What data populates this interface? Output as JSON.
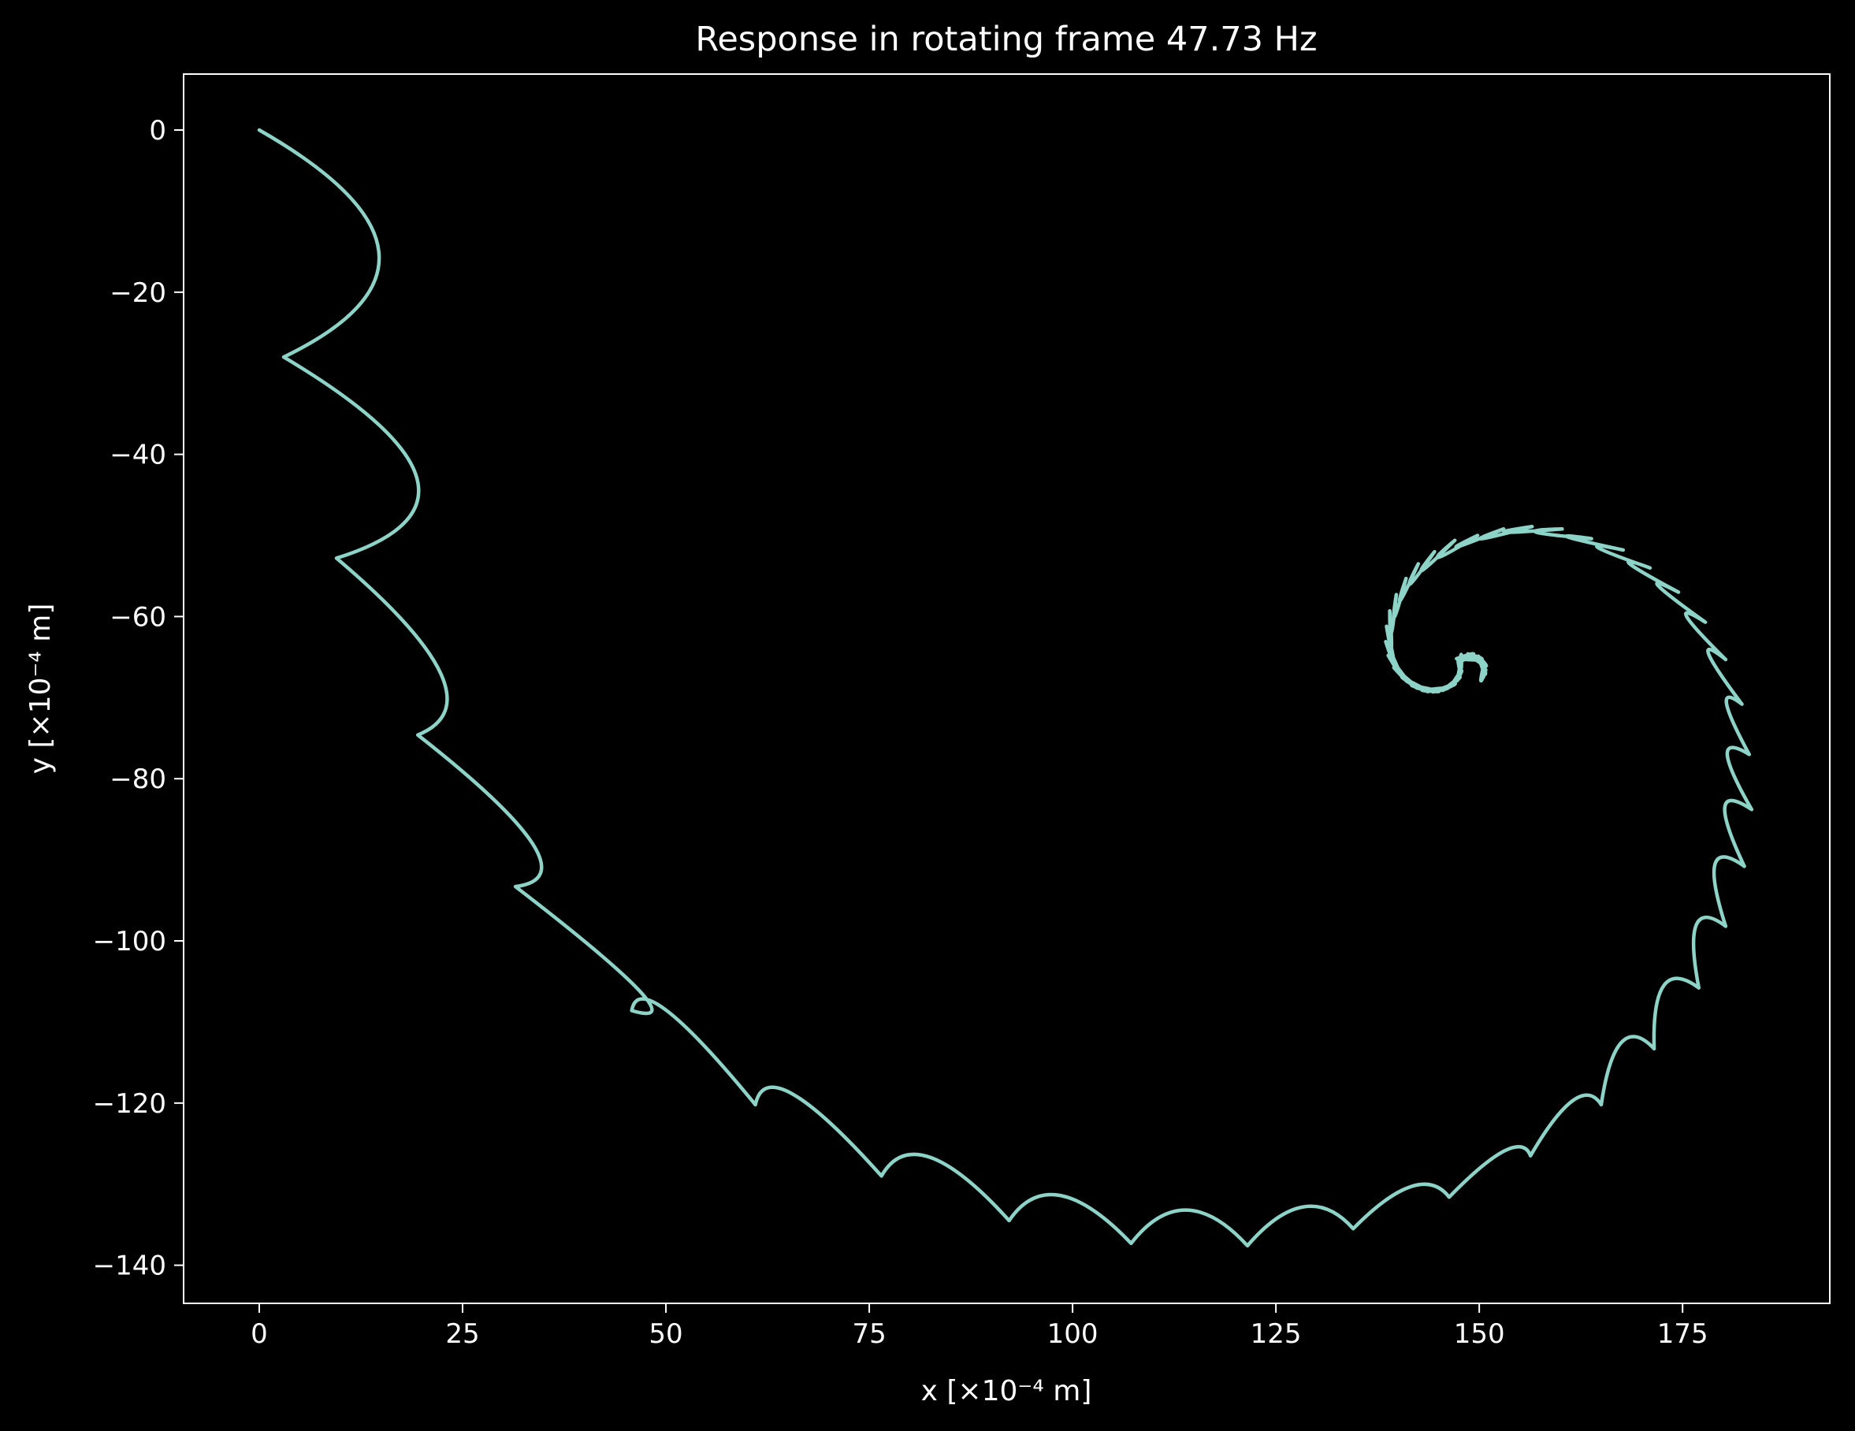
{
  "chart_data": {
    "type": "line",
    "title": "Response in rotating frame 47.73 Hz",
    "xlabel": "x [×10⁻⁴ m]",
    "ylabel": "y [×10⁻⁴ m]",
    "xlim": [
      -9.3,
      193.1
    ],
    "ylim": [
      -144.7,
      6.9
    ],
    "x_ticks": [
      {
        "value": 0,
        "label": "0"
      },
      {
        "value": 25,
        "label": "25"
      },
      {
        "value": 50,
        "label": "50"
      },
      {
        "value": 75,
        "label": "75"
      },
      {
        "value": 100,
        "label": "100"
      },
      {
        "value": 125,
        "label": "125"
      },
      {
        "value": 150,
        "label": "150"
      },
      {
        "value": 175,
        "label": "175"
      }
    ],
    "y_ticks": [
      {
        "value": 0,
        "label": "0"
      },
      {
        "value": -20,
        "label": "−20"
      },
      {
        "value": -40,
        "label": "−40"
      },
      {
        "value": -60,
        "label": "−60"
      },
      {
        "value": -80,
        "label": "−80"
      },
      {
        "value": -100,
        "label": "−100"
      },
      {
        "value": -120,
        "label": "−120"
      },
      {
        "value": -140,
        "label": "−140"
      }
    ],
    "grid": false,
    "line_color": "#8dd3c7",
    "background": "#000000",
    "series": [
      {
        "curve": "trochoid-spiral",
        "start": [
          0,
          0
        ],
        "center": [
          149.5,
          -66.5
        ],
        "cusps": [
          [
            3,
            -28
          ],
          [
            9.5,
            -52.8
          ],
          [
            19.5,
            -74.6
          ],
          [
            31.5,
            -93.3
          ],
          [
            45.8,
            -108.6
          ],
          [
            61,
            -120.2
          ],
          [
            76.5,
            -129
          ],
          [
            92.2,
            -134.5
          ],
          [
            107.2,
            -137.3
          ],
          [
            121.5,
            -137.6
          ],
          [
            134.5,
            -135.5
          ],
          [
            146.3,
            -131.6
          ],
          [
            156.3,
            -126.5
          ],
          [
            165,
            -120.2
          ],
          [
            171.5,
            -113.3
          ],
          [
            177,
            -105.8
          ],
          [
            180.3,
            -98.2
          ],
          [
            182.6,
            -90.8
          ],
          [
            183.5,
            -83.8
          ],
          [
            183.2,
            -77
          ],
          [
            182.3,
            -70.8
          ],
          [
            180.3,
            -65.3
          ],
          [
            177.8,
            -60.7
          ],
          [
            174.5,
            -57
          ],
          [
            171,
            -54
          ],
          [
            167.7,
            -51.8
          ],
          [
            163.8,
            -50.4
          ],
          [
            160.2,
            -49.2
          ],
          [
            156.5,
            -48.9
          ],
          [
            153,
            -49.2
          ],
          [
            149.8,
            -50
          ],
          [
            147,
            -50.6
          ],
          [
            144.5,
            -52
          ],
          [
            142.5,
            -53.5
          ],
          [
            141,
            -55.3
          ],
          [
            139.8,
            -57.3
          ],
          [
            139,
            -59.3
          ],
          [
            138.6,
            -61.2
          ],
          [
            138.5,
            -63.1
          ],
          [
            138.8,
            -64.8
          ],
          [
            139.5,
            -66.3
          ],
          [
            140.5,
            -67.5
          ],
          [
            141.7,
            -68.5
          ],
          [
            143,
            -69.1
          ],
          [
            144.3,
            -69.3
          ],
          [
            145.5,
            -69.1
          ],
          [
            146.5,
            -68.6
          ],
          [
            147.3,
            -67.9
          ],
          [
            147.7,
            -67.1
          ],
          [
            147.8,
            -66.3
          ],
          [
            147.6,
            -65.6
          ],
          [
            147.2,
            -65.2
          ],
          [
            148.6,
            -64.6
          ],
          [
            149.9,
            -64.9
          ],
          [
            150.6,
            -65.7
          ],
          [
            150.8,
            -66.6
          ],
          [
            150.5,
            -67.5
          ]
        ],
        "bulges": [
          [
            14.7,
            -15
          ],
          [
            19.4,
            -43
          ],
          [
            22.3,
            -67
          ],
          [
            33.6,
            -88
          ],
          [
            46.7,
            -106.1
          ],
          [
            50.1,
            -108.6
          ],
          [
            65.6,
            -118.9
          ],
          [
            82.5,
            -126.7
          ],
          [
            98.5,
            -131.4
          ],
          [
            114,
            -133.2
          ],
          [
            128.4,
            -132.8
          ],
          [
            141.6,
            -130.3
          ],
          [
            153.1,
            -125.9
          ],
          [
            161.5,
            -119.7
          ],
          [
            167.5,
            -112.5
          ],
          [
            172.7,
            -105.5
          ],
          [
            176.7,
            -98
          ],
          [
            179,
            -90.5
          ],
          [
            180.2,
            -83.5
          ],
          [
            180.5,
            -77
          ],
          [
            180.4,
            -70.7
          ],
          [
            178.2,
            -64.6
          ],
          [
            175.5,
            -60
          ],
          [
            172,
            -56.2
          ],
          [
            168.5,
            -53.5
          ],
          [
            164.6,
            -51.5
          ],
          [
            160.9,
            -50.2
          ],
          [
            157,
            -49.6
          ],
          [
            153.2,
            -49.6
          ],
          [
            150.3,
            -50.4
          ],
          [
            147.3,
            -51.4
          ],
          [
            145,
            -52.7
          ],
          [
            143,
            -54.3
          ],
          [
            141.5,
            -56
          ],
          [
            140.3,
            -58
          ],
          [
            139.6,
            -60
          ],
          [
            139.2,
            -62
          ],
          [
            139.2,
            -63.8
          ],
          [
            139.5,
            -65.6
          ],
          [
            140.2,
            -66.9
          ],
          [
            141.2,
            -68
          ],
          [
            142.4,
            -68.8
          ],
          [
            143.7,
            -69.2
          ],
          [
            145,
            -69.2
          ],
          [
            146.1,
            -68.8
          ],
          [
            147,
            -68.3
          ],
          [
            147.6,
            -67.5
          ],
          [
            147.8,
            -66.7
          ],
          [
            147.7,
            -65.9
          ],
          [
            147.4,
            -65.4
          ],
          [
            147.8,
            -64.7
          ],
          [
            149.3,
            -64.6
          ],
          [
            150.3,
            -65.3
          ],
          [
            150.8,
            -66.1
          ],
          [
            150.7,
            -67.1
          ],
          [
            150.2,
            -67.9
          ]
        ]
      }
    ]
  }
}
